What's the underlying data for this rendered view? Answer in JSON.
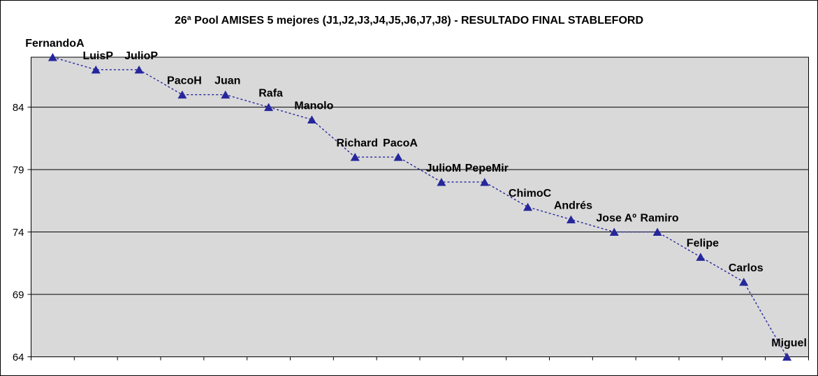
{
  "chart_data": {
    "type": "line",
    "title": "26ª Pool AMISES 5 mejores (J1,J2,J3,J4,J5,J6,J7,J8) - RESULTADO FINAL STABLEFORD",
    "categories": [
      "FernandoA",
      "LuisP",
      "JulioP",
      "PacoH",
      "Juan",
      "Rafa",
      "Manolo",
      "Richard",
      "PacoA",
      "JulioM",
      "PepeMir",
      "ChimoC",
      "Andrés",
      "Jose Aº",
      "Ramiro",
      "Felipe",
      "Carlos",
      "Miguel"
    ],
    "values": [
      88,
      87,
      87,
      85,
      85,
      84,
      83,
      80,
      80,
      78,
      78,
      76,
      75,
      74,
      74,
      72,
      70,
      64
    ],
    "series": [
      {
        "name": "RESULTADO FINAL STABLEFORD",
        "values": [
          88,
          87,
          87,
          85,
          85,
          84,
          83,
          80,
          80,
          78,
          78,
          76,
          75,
          74,
          74,
          72,
          70,
          64
        ]
      }
    ],
    "xlabel": "",
    "ylabel": "",
    "ylim": [
      64,
      88
    ],
    "yticks": [
      84,
      79,
      74,
      69,
      64
    ],
    "grid": "horizontal",
    "legend": "none",
    "marker": "triangle",
    "line_style": "dashed",
    "data_labels": "category names above points",
    "colors": {
      "series": "#26269C",
      "plot_background": "#D9D9D9",
      "grid_line": "#000000",
      "axis_line": "#000000",
      "text": "#000000",
      "chart_background": "#FFFFFF"
    }
  }
}
